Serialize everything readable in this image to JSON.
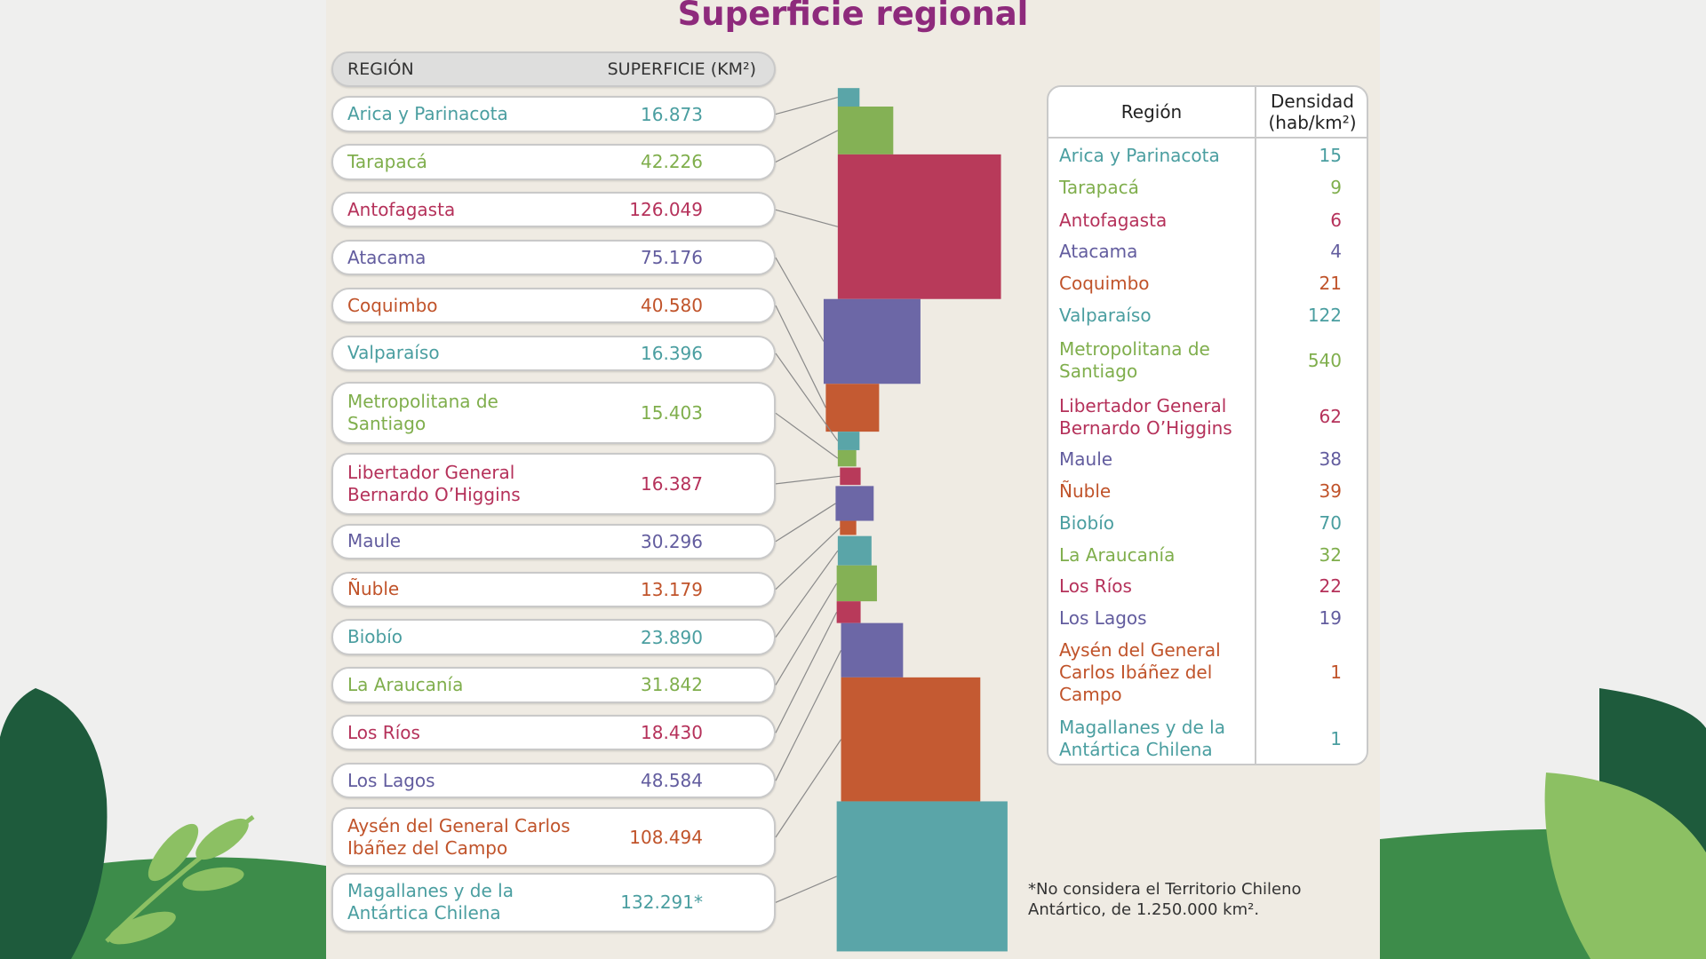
{
  "title": "Superficie regional",
  "colors": {
    "teal": "#5aa5a8",
    "green": "#84b155",
    "red": "#b83a5a",
    "purple": "#6c67a6",
    "orange": "#c45a32",
    "title": "#8e2a7c"
  },
  "left_table": {
    "header_region": "REGIÓN",
    "header_superficie": "SUPERFICIE (KM²)"
  },
  "right_table": {
    "header_region": "Región",
    "header_densidad": "Densidad\n(hab/km²)"
  },
  "footnote": "*No considera el Territorio Chileno\nAntártico, de 1.250.000 km².",
  "chart_data": {
    "type": "table",
    "title": "Superficie regional",
    "rows": [
      {
        "region": "Arica y Parinacota",
        "region_right": "Arica y Parinacota",
        "superficie": "16.873",
        "densidad": "15",
        "color": "teal"
      },
      {
        "region": "Tarapacá",
        "region_right": "Tarapacá",
        "superficie": "42.226",
        "densidad": "9",
        "color": "green"
      },
      {
        "region": "Antofagasta",
        "region_right": "Antofagasta",
        "superficie": "126.049",
        "densidad": "6",
        "color": "red"
      },
      {
        "region": "Atacama",
        "region_right": "Atacama",
        "superficie": "75.176",
        "densidad": "4",
        "color": "purple"
      },
      {
        "region": "Coquimbo",
        "region_right": "Coquimbo",
        "superficie": "40.580",
        "densidad": "21",
        "color": "orange"
      },
      {
        "region": "Valparaíso",
        "region_right": "Valparaíso",
        "superficie": "16.396",
        "densidad": "122",
        "color": "teal"
      },
      {
        "region": "Metropolitana de\nSantiago",
        "region_right": "Metropolitana de\nSantiago",
        "superficie": "15.403",
        "densidad": "540",
        "color": "green"
      },
      {
        "region": "Libertador General\nBernardo O’Higgins",
        "region_right": "Libertador General\nBernardo O’Higgins",
        "superficie": "16.387",
        "densidad": "62",
        "color": "red"
      },
      {
        "region": "Maule",
        "region_right": "Maule",
        "superficie": "30.296",
        "densidad": "38",
        "color": "purple"
      },
      {
        "region": "Ñuble",
        "region_right": "Ñuble",
        "superficie": "13.179",
        "densidad": "39",
        "color": "orange"
      },
      {
        "region": "Biobío",
        "region_right": "Biobío",
        "superficie": "23.890",
        "densidad": "70",
        "color": "teal"
      },
      {
        "region": "La Araucanía",
        "region_right": "La Araucanía",
        "superficie": "31.842",
        "densidad": "32",
        "color": "green"
      },
      {
        "region": "Los Ríos",
        "region_right": "Los Ríos",
        "superficie": "18.430",
        "densidad": "22",
        "color": "red"
      },
      {
        "region": "Los Lagos",
        "region_right": "Los Lagos",
        "superficie": "48.584",
        "densidad": "19",
        "color": "purple"
      },
      {
        "region": "Aysén del General Carlos\nIbáñez del Campo",
        "region_right": "Aysén del General\nCarlos Ibáñez del\nCampo",
        "superficie": "108.494",
        "densidad": "1",
        "color": "orange"
      },
      {
        "region": "Magallanes y de la\nAntártica Chilena",
        "region_right": "Magallanes y de la\nAntártica Chilena",
        "superficie": "132.291*",
        "densidad": "1",
        "color": "teal"
      }
    ]
  }
}
